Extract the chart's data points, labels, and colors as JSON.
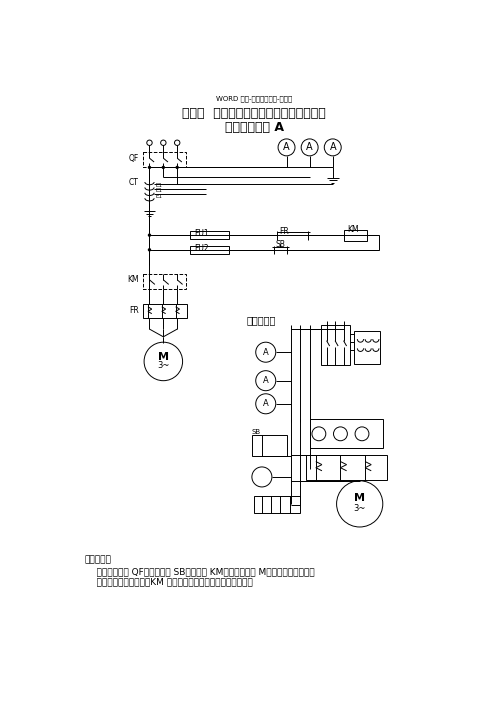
{
  "page_bg": "#ffffff",
  "header_text": "WORD 格式-专业学习资料-可编辑",
  "title_line1": "模块五  深圳市电工安全技术实训项目汇编",
  "title_line2": "电工安全技术 A",
  "wiring_label": "接线示意图",
  "work_principle_title": "工作原理：",
  "work_principle_body1": "    合上空气开关 QF，按动按扭 SB，接触器 KM吸合，电动机 M转动，电流表有三相",
  "work_principle_body2": "    电流指示。松开按扭，KM 释放，电动机停止。此电路为点动。",
  "fig_width": 4.96,
  "fig_height": 7.02,
  "dpi": 100
}
